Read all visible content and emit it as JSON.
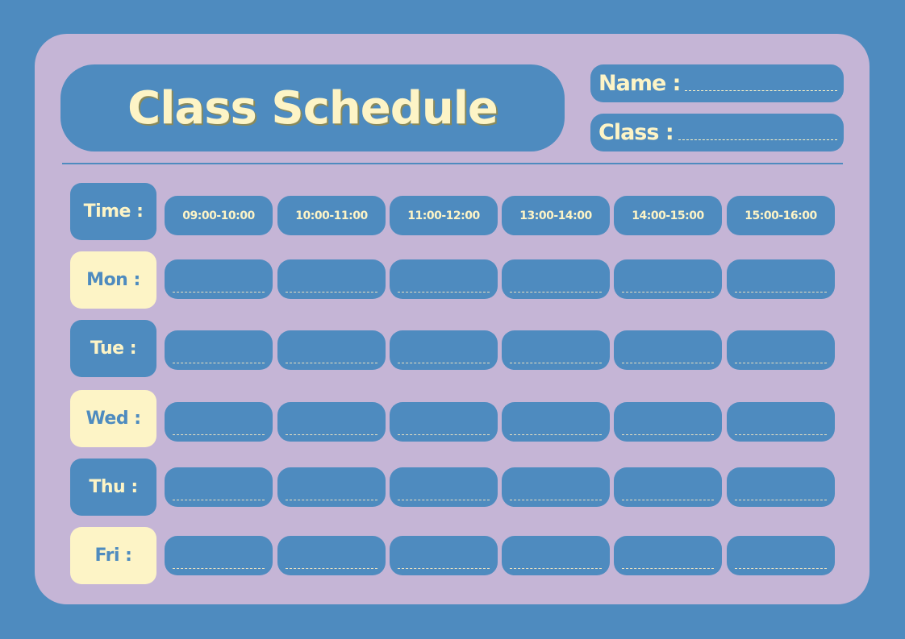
{
  "title": "Class Schedule",
  "fields": {
    "name_label": "Name :",
    "class_label": "Class :"
  },
  "time_label": "Time :",
  "time_slots": [
    "09:00-10:00",
    "10:00-11:00",
    "11:00-12:00",
    "13:00-14:00",
    "14:00-15:00",
    "15:00-16:00"
  ],
  "days": [
    {
      "label": "Mon :",
      "style": "cream"
    },
    {
      "label": "Tue :",
      "style": "blue"
    },
    {
      "label": "Wed :",
      "style": "cream"
    },
    {
      "label": "Thu :",
      "style": "blue"
    },
    {
      "label": "Fri :",
      "style": "cream"
    }
  ],
  "colors": {
    "background": "#4e8bbf",
    "card": "#c5b5d6",
    "accent": "#fdf4c6"
  }
}
